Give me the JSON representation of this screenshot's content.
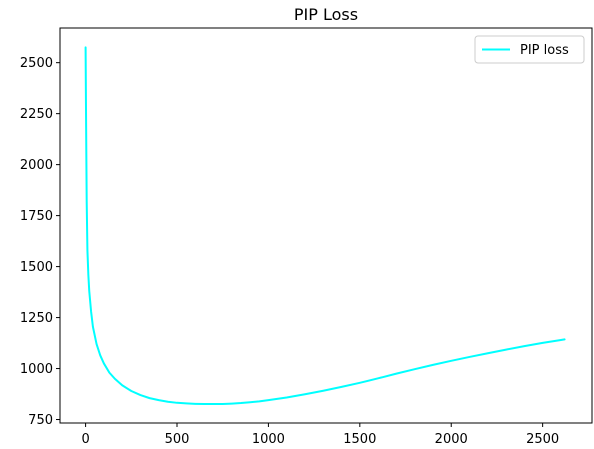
{
  "chart_data": {
    "type": "line",
    "title": "PIP Loss",
    "xlabel": "",
    "ylabel": "",
    "xlim": [
      -140,
      2770
    ],
    "ylim": [
      733,
      2670
    ],
    "xticks": [
      0,
      500,
      1000,
      1500,
      2000,
      2500
    ],
    "yticks": [
      750,
      1000,
      1250,
      1500,
      1750,
      2000,
      2250,
      2500
    ],
    "grid": false,
    "legend_position": "top-right",
    "series": [
      {
        "name": "PIP loss",
        "color": "#00ffff",
        "x": [
          0,
          2,
          4,
          6,
          10,
          15,
          20,
          30,
          40,
          60,
          80,
          100,
          130,
          160,
          200,
          250,
          300,
          350,
          400,
          450,
          500,
          550,
          600,
          650,
          700,
          750,
          800,
          850,
          900,
          950,
          1000,
          1100,
          1200,
          1300,
          1400,
          1500,
          1600,
          1700,
          1800,
          1900,
          2000,
          2100,
          2200,
          2300,
          2400,
          2500,
          2600,
          2620
        ],
        "y": [
          2575,
          2300,
          2050,
          1820,
          1580,
          1460,
          1380,
          1280,
          1205,
          1120,
          1065,
          1025,
          980,
          950,
          918,
          890,
          870,
          855,
          845,
          837,
          832,
          829,
          827,
          826,
          826,
          826,
          828,
          831,
          835,
          839,
          845,
          858,
          874,
          891,
          910,
          930,
          952,
          975,
          997,
          1018,
          1038,
          1057,
          1075,
          1093,
          1110,
          1126,
          1140,
          1143
        ]
      }
    ]
  }
}
